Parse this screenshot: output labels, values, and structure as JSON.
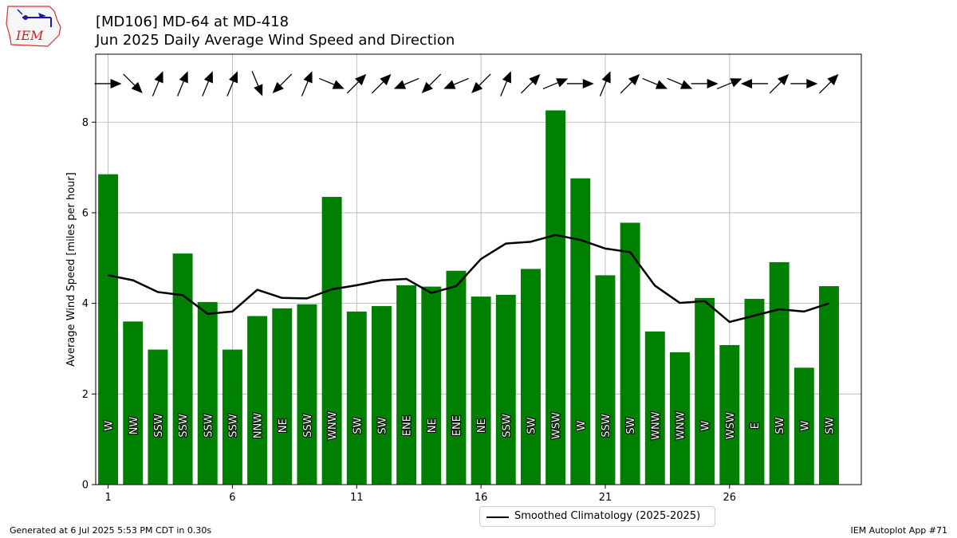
{
  "title_line1": "[MD106] MD-64 at MD-418",
  "title_line2": "Jun 2025 Daily Average Wind Speed and Direction",
  "footer_left": "Generated at 6 Jul 2025 5:53 PM CDT in 0.30s",
  "footer_right": "IEM Autoplot App #71",
  "logo_text": "IEM",
  "chart_data": {
    "type": "bar",
    "ylabel": "Average Wind Speed [miles per hour]",
    "ylim": [
      0,
      9.5
    ],
    "xlim": [
      0.5,
      31.3
    ],
    "yticks": [
      0,
      2,
      4,
      6,
      8
    ],
    "xticks": [
      1,
      6,
      11,
      16,
      21,
      26
    ],
    "grid": true,
    "bar_color": "#008000",
    "line_color": "#000000",
    "days": [
      1,
      2,
      3,
      4,
      5,
      6,
      7,
      8,
      9,
      10,
      11,
      12,
      13,
      14,
      15,
      16,
      17,
      18,
      19,
      20,
      21,
      22,
      23,
      24,
      25,
      26,
      27,
      28,
      29,
      30
    ],
    "speed": [
      6.85,
      3.6,
      2.98,
      5.1,
      4.03,
      2.98,
      3.72,
      3.89,
      3.98,
      6.35,
      3.82,
      3.94,
      4.4,
      4.37,
      4.72,
      4.15,
      4.19,
      4.76,
      8.26,
      6.76,
      4.62,
      5.78,
      3.38,
      2.92,
      4.12,
      3.08,
      4.1,
      4.91,
      2.58,
      4.38
    ],
    "direction": [
      "W",
      "NW",
      "SSW",
      "SSW",
      "SSW",
      "SSW",
      "NNW",
      "NE",
      "SSW",
      "WNW",
      "SW",
      "SW",
      "ENE",
      "NE",
      "ENE",
      "NE",
      "SSW",
      "SW",
      "WSW",
      "W",
      "SSW",
      "SW",
      "WNW",
      "WNW",
      "W",
      "WSW",
      "E",
      "SW",
      "W",
      "SW"
    ],
    "series": [
      {
        "name": "Smoothed Climatology (2025-2025)",
        "values": [
          4.62,
          4.51,
          4.25,
          4.18,
          3.77,
          3.82,
          4.3,
          4.12,
          4.11,
          4.31,
          4.4,
          4.51,
          4.54,
          4.23,
          4.38,
          4.98,
          5.32,
          5.36,
          5.51,
          5.4,
          5.21,
          5.13,
          4.39,
          4.01,
          4.05,
          3.59,
          3.73,
          3.87,
          3.82,
          4.0
        ]
      }
    ],
    "legend": "bottom-center"
  }
}
